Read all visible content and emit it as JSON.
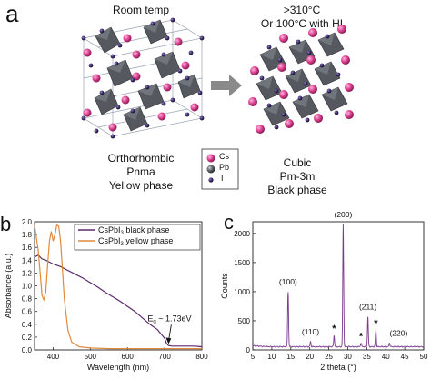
{
  "panel_a": {
    "letter": "a",
    "left_title": "Room temp",
    "right_title_line1": ">310°C",
    "right_title_line2": "Or 100°C with HI",
    "left_caption": [
      "Orthorhombic",
      "Pnma",
      "Yellow phase"
    ],
    "right_caption": [
      "Cubic",
      "Pm-3m",
      "Black phase"
    ],
    "legend": [
      {
        "label": "Cs",
        "color": "#d63a8a"
      },
      {
        "label": "Pb",
        "color": "#555a60"
      },
      {
        "label": "I",
        "color": "#3a2a66"
      }
    ],
    "colors": {
      "octahedron": "#55595f",
      "cs": "#d63a8a",
      "iodide": "#3a2a66",
      "arrow": "#8a8a8a"
    }
  },
  "panel_b": {
    "letter": "b",
    "annotation": "E",
    "annotation_sub": "g",
    "annotation_value": " ~ 1.73eV",
    "chart_data": {
      "type": "line",
      "xlabel": "Wavelength (nm)",
      "ylabel": "Absorbance (a.u.)",
      "xlim": [
        350,
        800
      ],
      "ylim": [
        0.0,
        2.0
      ],
      "xticks": [
        400,
        500,
        600,
        700,
        800
      ],
      "yticks": [
        0.0,
        0.2,
        0.4,
        0.6,
        0.8,
        1.0,
        1.2,
        1.4,
        1.6,
        1.8,
        2.0
      ],
      "series": [
        {
          "name": "CsPbI3 black phase",
          "color": "#5b2a6e",
          "x": [
            350,
            360,
            370,
            380,
            390,
            400,
            420,
            440,
            460,
            480,
            500,
            520,
            540,
            560,
            580,
            600,
            620,
            640,
            660,
            680,
            690,
            700,
            705,
            710,
            720,
            740,
            760,
            780,
            800
          ],
          "y": [
            1.45,
            1.48,
            1.42,
            1.4,
            1.37,
            1.34,
            1.3,
            1.24,
            1.18,
            1.12,
            1.05,
            0.98,
            0.9,
            0.83,
            0.76,
            0.68,
            0.6,
            0.5,
            0.4,
            0.32,
            0.25,
            0.18,
            0.1,
            0.07,
            0.06,
            0.06,
            0.06,
            0.06,
            0.05
          ]
        },
        {
          "name": "CsPbI3 yellow phase",
          "color": "#e08a3c",
          "x": [
            350,
            360,
            370,
            375,
            380,
            385,
            390,
            395,
            400,
            405,
            410,
            415,
            420,
            425,
            430,
            440,
            450,
            470,
            500,
            550,
            600,
            650,
            700,
            750,
            800
          ],
          "y": [
            1.95,
            1.55,
            0.85,
            0.78,
            0.9,
            1.3,
            1.7,
            1.85,
            1.7,
            1.8,
            1.95,
            1.93,
            1.7,
            1.25,
            0.8,
            0.3,
            0.12,
            0.05,
            0.03,
            0.02,
            0.02,
            0.02,
            0.02,
            0.02,
            0.02
          ]
        }
      ],
      "legend_placement": "top-right",
      "legend_entries": [
        {
          "text": "CsPbI",
          "sub": "3",
          "tail": " black phase"
        },
        {
          "text": "CsPbI",
          "sub": "3",
          "tail": " yellow phase"
        }
      ]
    }
  },
  "panel_c": {
    "letter": "c",
    "chart_data": {
      "type": "line",
      "xlabel": "2 theta (°)",
      "ylabel": "Counts",
      "xlim": [
        5,
        50
      ],
      "ylim": [
        0,
        2200
      ],
      "xticks": [
        5,
        10,
        15,
        20,
        25,
        30,
        35,
        40,
        45,
        50
      ],
      "yticks": [
        0,
        500,
        1000,
        1500,
        2000
      ],
      "series": [
        {
          "name": "",
          "color": "#7a3a8e",
          "baseline": 55,
          "peaks": [
            {
              "x": 14.3,
              "y": 1000,
              "label": "(100)"
            },
            {
              "x": 20.2,
              "y": 140,
              "label": "(110)"
            },
            {
              "x": 26.4,
              "y": 250,
              "label": "*"
            },
            {
              "x": 28.8,
              "y": 2150,
              "label": "(200)"
            },
            {
              "x": 33.5,
              "y": 120,
              "label": "*"
            },
            {
              "x": 35.3,
              "y": 570,
              "label": "(211)"
            },
            {
              "x": 37.4,
              "y": 340,
              "label": "*"
            },
            {
              "x": 41.0,
              "y": 120,
              "label": "(220)"
            }
          ]
        }
      ]
    }
  }
}
